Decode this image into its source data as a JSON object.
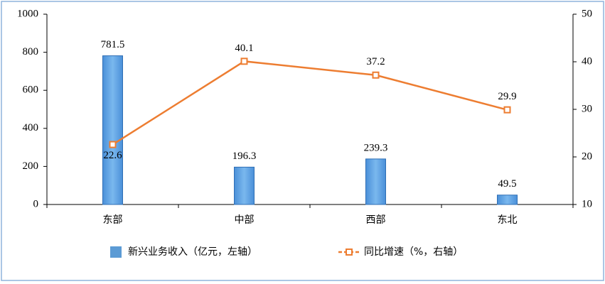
{
  "chart_data": {
    "type": "bar-line",
    "categories": [
      "东部",
      "中部",
      "西部",
      "东北"
    ],
    "series": [
      {
        "name": "新兴业务收入（亿元，左轴）",
        "type": "bar",
        "color": "#5b9bd5",
        "values": [
          781.5,
          196.3,
          239.3,
          49.5
        ]
      },
      {
        "name": "同比增速（%，右轴）",
        "type": "line",
        "axis": "y2",
        "color": "#ed7d31",
        "values": [
          22.6,
          40.1,
          37.2,
          29.9
        ]
      }
    ],
    "ylim": [
      0,
      1000
    ],
    "yticks": [
      0,
      200,
      400,
      600,
      800,
      1000
    ],
    "y2lim": [
      10,
      50
    ],
    "y2ticks": [
      10,
      20,
      30,
      40,
      50
    ],
    "legend": "bottom"
  }
}
